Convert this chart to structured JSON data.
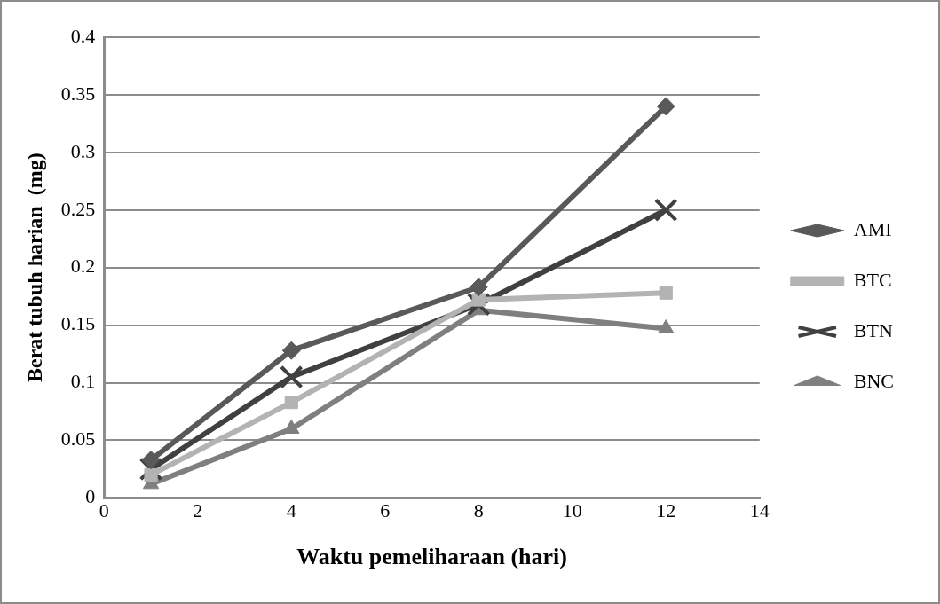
{
  "chart_data": {
    "type": "line",
    "xlabel": "Waktu pemeliharaan (hari)",
    "ylabel": "Berat tubuh harian  (mg)",
    "x": [
      1,
      4,
      8,
      12
    ],
    "series": [
      {
        "name": "AMI",
        "color": "#595959",
        "marker": "diamond",
        "values": [
          0.033,
          0.128,
          0.183,
          0.34
        ]
      },
      {
        "name": "BTC",
        "color": "#b3b3b3",
        "marker": "square",
        "values": [
          0.02,
          0.083,
          0.172,
          0.178
        ]
      },
      {
        "name": "BTN",
        "color": "#404040",
        "marker": "cross",
        "values": [
          0.025,
          0.105,
          0.168,
          0.25
        ]
      },
      {
        "name": "BNC",
        "color": "#7f7f7f",
        "marker": "triangle",
        "values": [
          0.012,
          0.06,
          0.163,
          0.147
        ]
      }
    ],
    "xlim": [
      0,
      14
    ],
    "xticks": [
      0,
      2,
      4,
      6,
      8,
      10,
      12,
      14
    ],
    "ylim": [
      0,
      0.4
    ],
    "yticks": [
      0,
      0.05,
      0.1,
      0.15,
      0.2,
      0.25,
      0.3,
      0.35,
      0.4
    ],
    "grid": "y",
    "legend": "right"
  }
}
